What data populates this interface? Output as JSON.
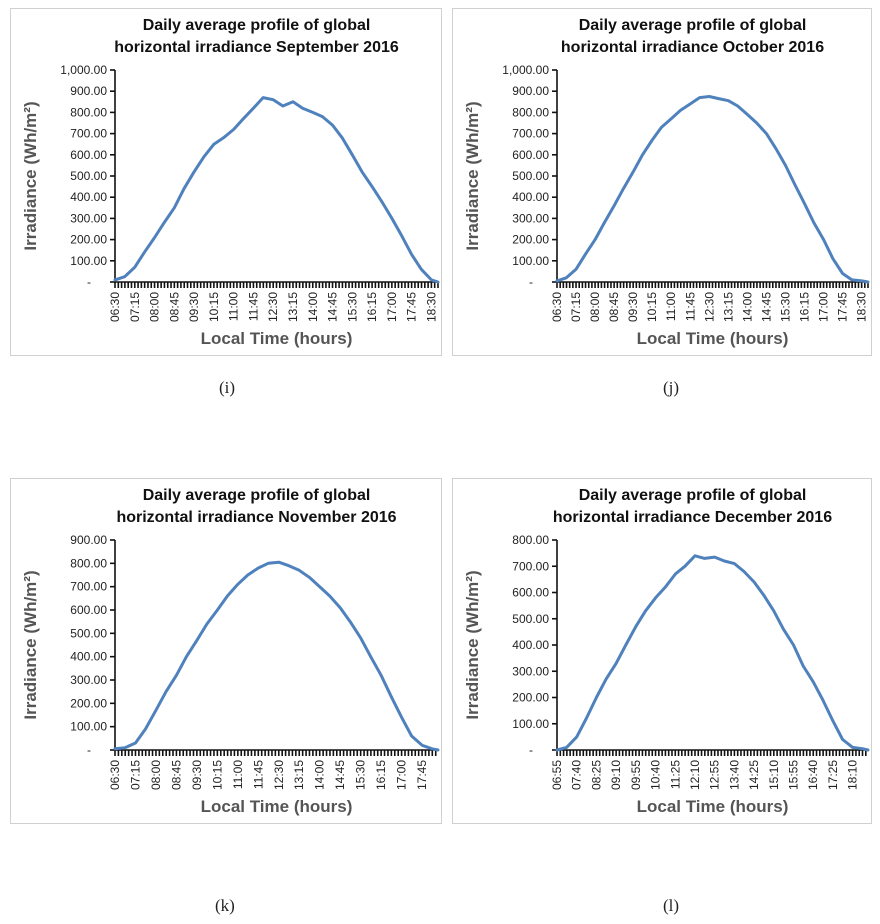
{
  "line_color": "#4F81BD",
  "chart_data": [
    {
      "type": "line",
      "caption": "(i)",
      "title": [
        "Daily average profile of global",
        "horizontal irradiance September 2016"
      ],
      "xlabel": "Local Time (hours)",
      "ylabel": "Irradiance (Wh/m²)",
      "yticks": [
        "-",
        "100.00",
        "200.00",
        "300.00",
        "400.00",
        "500.00",
        "600.00",
        "700.00",
        "800.00",
        "900.00",
        "1,000.00"
      ],
      "ylim": [
        0,
        1000
      ],
      "xticks": [
        "06:30",
        "07:15",
        "08:00",
        "08:45",
        "09:30",
        "10:15",
        "11:00",
        "11:45",
        "12:30",
        "13:15",
        "14:00",
        "14:45",
        "15:30",
        "16:15",
        "17:00",
        "17:45",
        "18:30"
      ],
      "x": [
        "06:30",
        "06:52",
        "07:15",
        "07:37",
        "08:00",
        "08:22",
        "08:45",
        "09:07",
        "09:30",
        "09:52",
        "10:15",
        "10:37",
        "11:00",
        "11:22",
        "11:45",
        "12:07",
        "12:30",
        "12:52",
        "13:15",
        "13:37",
        "14:00",
        "14:22",
        "14:45",
        "15:07",
        "15:30",
        "15:52",
        "16:15",
        "16:37",
        "17:00",
        "17:22",
        "17:45",
        "18:07",
        "18:30",
        "18:45"
      ],
      "series": [
        {
          "values": [
            10,
            25,
            70,
            140,
            210,
            280,
            350,
            440,
            520,
            590,
            650,
            680,
            720,
            770,
            820,
            870,
            860,
            830,
            850,
            820,
            800,
            780,
            740,
            680,
            600,
            520,
            450,
            380,
            300,
            220,
            130,
            60,
            10,
            0
          ]
        }
      ]
    },
    {
      "type": "line",
      "caption": "(j)",
      "title": [
        "Daily average profile of global",
        "horizontal irradiance October 2016"
      ],
      "xlabel": "Local Time (hours)",
      "ylabel": "Irradiance (Wh/m²)",
      "yticks": [
        "-",
        "100.00",
        "200.00",
        "300.00",
        "400.00",
        "500.00",
        "600.00",
        "700.00",
        "800.00",
        "900.00",
        "1,000.00"
      ],
      "ylim": [
        0,
        1000
      ],
      "xticks": [
        "06:30",
        "07:15",
        "08:00",
        "08:45",
        "09:30",
        "10:15",
        "11:00",
        "11:45",
        "12:30",
        "13:15",
        "14:00",
        "14:45",
        "15:30",
        "16:15",
        "17:00",
        "17:45",
        "18:30"
      ],
      "x": [
        "06:30",
        "06:52",
        "07:15",
        "07:37",
        "08:00",
        "08:22",
        "08:45",
        "09:07",
        "09:30",
        "09:52",
        "10:15",
        "10:37",
        "11:00",
        "11:22",
        "11:45",
        "12:07",
        "12:30",
        "12:52",
        "13:15",
        "13:37",
        "14:00",
        "14:22",
        "14:45",
        "15:07",
        "15:30",
        "15:52",
        "16:15",
        "16:37",
        "17:00",
        "17:22",
        "17:45",
        "18:07",
        "18:30",
        "18:45"
      ],
      "series": [
        {
          "values": [
            5,
            20,
            60,
            130,
            200,
            280,
            360,
            440,
            520,
            600,
            670,
            730,
            770,
            810,
            840,
            870,
            875,
            865,
            855,
            830,
            790,
            750,
            700,
            630,
            550,
            460,
            370,
            280,
            200,
            110,
            40,
            10,
            5,
            0
          ]
        }
      ]
    },
    {
      "type": "line",
      "caption": "(k)",
      "title": [
        "Daily average profile of global",
        "horizontal irradiance November 2016"
      ],
      "xlabel": "Local Time (hours)",
      "ylabel": "Irradiance (Wh/m²)",
      "yticks": [
        "-",
        "100.00",
        "200.00",
        "300.00",
        "400.00",
        "500.00",
        "600.00",
        "700.00",
        "800.00",
        "900.00"
      ],
      "ylim": [
        0,
        900
      ],
      "xticks": [
        "06:30",
        "07:15",
        "08:00",
        "08:45",
        "09:30",
        "10:15",
        "11:00",
        "11:45",
        "12:30",
        "13:15",
        "14:00",
        "14:45",
        "15:30",
        "16:15",
        "17:00",
        "17:45"
      ],
      "x": [
        "06:30",
        "06:52",
        "07:15",
        "07:37",
        "08:00",
        "08:22",
        "08:45",
        "09:07",
        "09:30",
        "09:52",
        "10:15",
        "10:37",
        "11:00",
        "11:22",
        "11:45",
        "12:07",
        "12:30",
        "12:52",
        "13:15",
        "13:37",
        "14:00",
        "14:22",
        "14:45",
        "15:07",
        "15:30",
        "15:52",
        "16:15",
        "16:37",
        "17:00",
        "17:22",
        "17:45",
        "18:07",
        "18:20"
      ],
      "series": [
        {
          "values": [
            5,
            10,
            30,
            90,
            170,
            250,
            320,
            400,
            470,
            540,
            600,
            660,
            710,
            750,
            780,
            800,
            805,
            790,
            770,
            740,
            700,
            660,
            610,
            550,
            480,
            400,
            320,
            230,
            140,
            60,
            20,
            5,
            0
          ]
        }
      ]
    },
    {
      "type": "line",
      "caption": "(l)",
      "title": [
        "Daily average profile of global",
        "horizontal irradiance December 2016"
      ],
      "xlabel": "Local Time (hours)",
      "ylabel": "Irradiance (Wh/m²)",
      "yticks": [
        "-",
        "100.00",
        "200.00",
        "300.00",
        "400.00",
        "500.00",
        "600.00",
        "700.00",
        "800.00"
      ],
      "ylim": [
        0,
        800
      ],
      "xticks": [
        "06:55",
        "07:40",
        "08:25",
        "09:10",
        "09:55",
        "10:40",
        "11:25",
        "12:10",
        "12:55",
        "13:40",
        "14:25",
        "15:10",
        "15:55",
        "16:40",
        "17:25",
        "18:10"
      ],
      "x": [
        "06:55",
        "07:17",
        "07:40",
        "08:02",
        "08:25",
        "08:47",
        "09:10",
        "09:32",
        "09:55",
        "10:17",
        "10:40",
        "11:02",
        "11:25",
        "11:47",
        "12:10",
        "12:32",
        "12:55",
        "13:17",
        "13:40",
        "14:02",
        "14:25",
        "14:47",
        "15:10",
        "15:32",
        "15:55",
        "16:17",
        "16:40",
        "17:02",
        "17:25",
        "17:47",
        "18:10",
        "18:32",
        "18:45"
      ],
      "series": [
        {
          "values": [
            0,
            10,
            50,
            120,
            200,
            270,
            330,
            400,
            470,
            530,
            580,
            620,
            670,
            700,
            740,
            730,
            735,
            720,
            710,
            680,
            640,
            590,
            530,
            460,
            400,
            320,
            260,
            190,
            110,
            40,
            10,
            5,
            0
          ]
        }
      ]
    }
  ]
}
